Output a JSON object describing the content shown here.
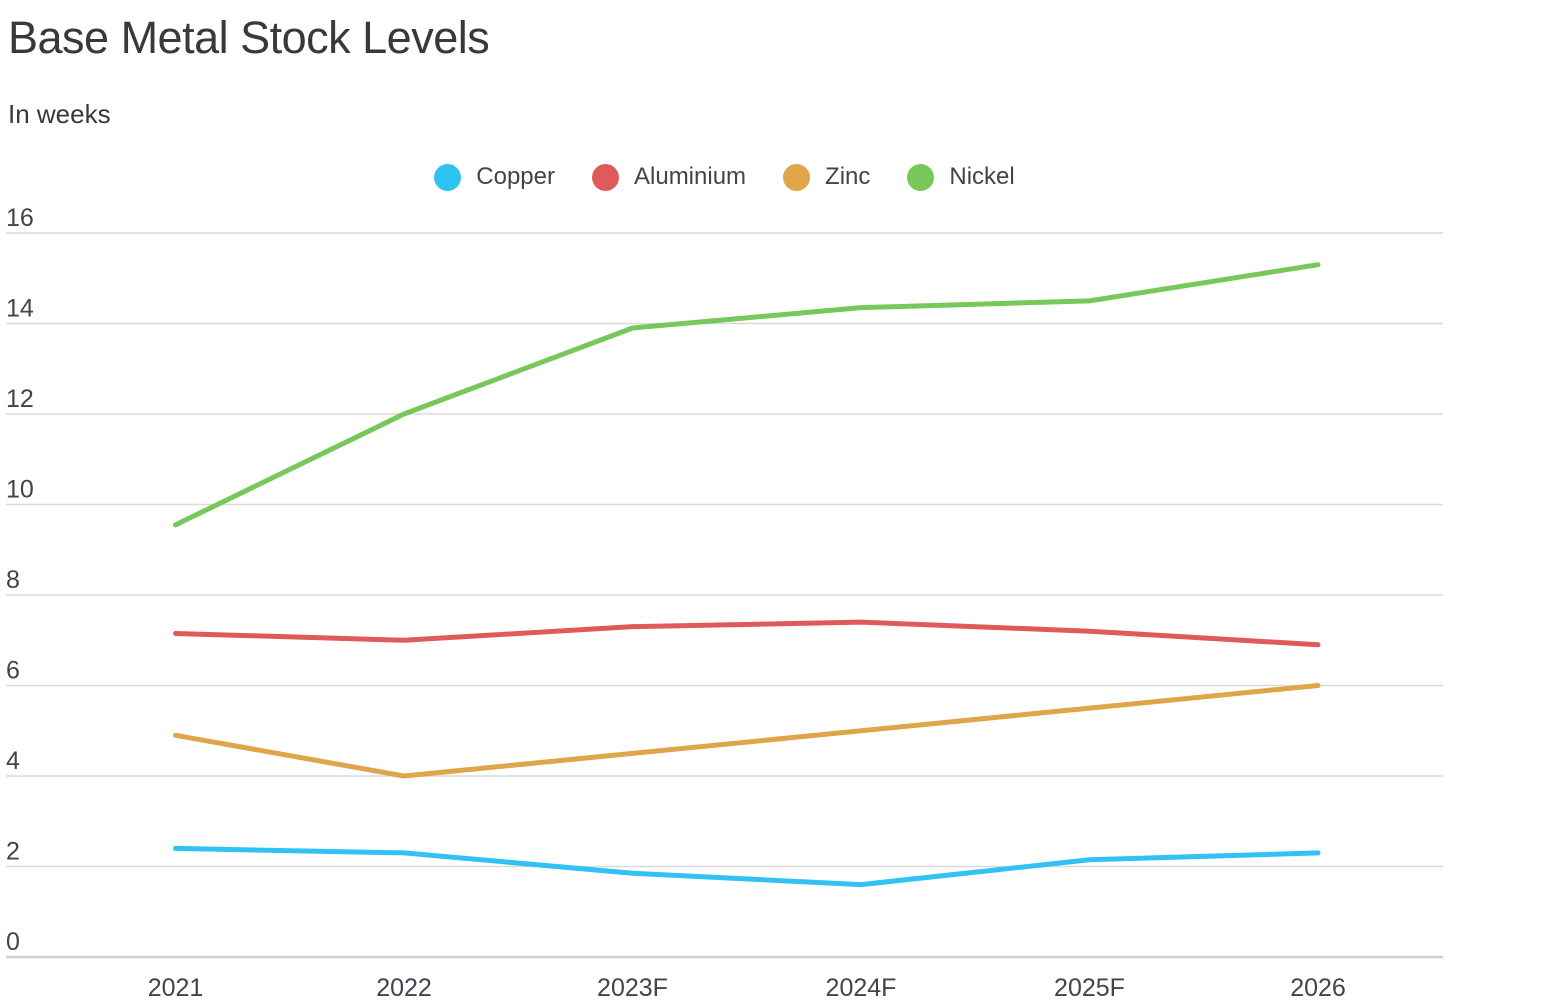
{
  "title": "Base Metal Stock Levels",
  "subtitle": "In weeks",
  "colors": {
    "copper": "#30C3F2",
    "aluminium": "#E05A5A",
    "zinc": "#E0A44B",
    "nickel": "#77C75A",
    "gridline": "#DADADA",
    "baseline": "#CFCFCF",
    "axis_text": "#3F454A",
    "title_text": "#393939"
  },
  "chart_data": {
    "type": "line",
    "title": "Base Metal Stock Levels",
    "subtitle": "In weeks",
    "xlabel": "",
    "ylabel": "In weeks",
    "categories": [
      "2021",
      "2022",
      "2023F",
      "2024F",
      "2025F",
      "2026"
    ],
    "series": [
      {
        "name": "Copper",
        "color_key": "copper",
        "values": [
          2.4,
          2.3,
          1.85,
          1.6,
          2.15,
          2.3
        ]
      },
      {
        "name": "Aluminium",
        "color_key": "aluminium",
        "values": [
          7.15,
          7.0,
          7.3,
          7.4,
          7.2,
          6.9
        ]
      },
      {
        "name": "Zinc",
        "color_key": "zinc",
        "values": [
          4.9,
          4.0,
          4.5,
          5.0,
          5.5,
          6.0
        ]
      },
      {
        "name": "Nickel",
        "color_key": "nickel",
        "values": [
          9.55,
          12.0,
          13.9,
          14.35,
          14.5,
          15.3
        ]
      }
    ],
    "ylim": [
      0,
      16
    ],
    "yticks": [
      0,
      2,
      4,
      6,
      8,
      10,
      12,
      14,
      16
    ],
    "grid": "horizontal",
    "legend_position": "top-center"
  }
}
